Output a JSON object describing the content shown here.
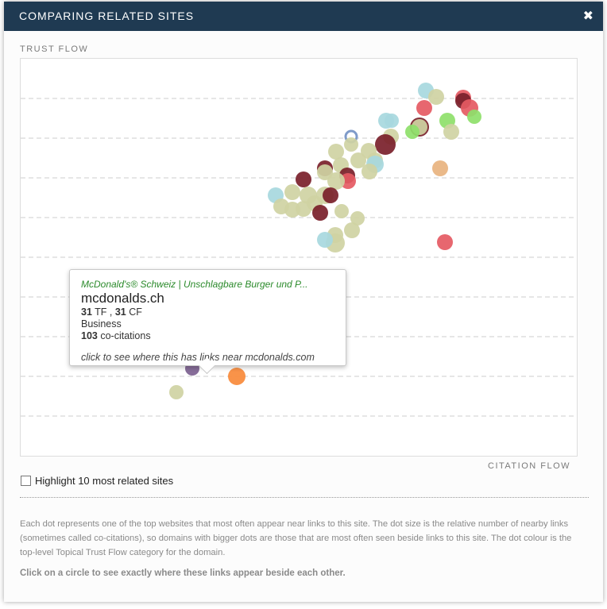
{
  "modal": {
    "title": "COMPARING RELATED SITES",
    "close_icon": "close-icon"
  },
  "chart_labels": {
    "y_axis": "TRUST FLOW",
    "x_axis": "CITATION FLOW"
  },
  "tooltip": {
    "site_title": "McDonald's® Schweiz | Unschlagbare Burger und P...",
    "domain": "mcdonalds.ch",
    "tf_value": "31",
    "tf_label": "TF ,",
    "cf_value": "31",
    "cf_label": "CF",
    "category": "Business",
    "cocitations_value": "103",
    "cocitations_label": "co-citations",
    "hint": "click to see where this has links near mcdonalds.com"
  },
  "highlight": {
    "label": "Highlight 10 most related sites",
    "checked": false
  },
  "description": "Each dot represents one of the top websites that most often appear near links to this site. The dot size is the relative number of nearby links (sometimes called co-citations), so domains with bigger dots are those that are most often seen beside links to this site. The dot colour is the top-level Topical Trust Flow category for the domain.",
  "cta": "Click on a circle to see exactly where these links appear beside each other.",
  "colors": {
    "header": "#1f3a52",
    "business": "#cfd2a3",
    "teal": "#a7d8de",
    "red": "#e55a63",
    "maroon": "#7a1f2a",
    "green": "#8ee06a",
    "orange": "#f98a3a",
    "tan": "#e8b37f",
    "pink": "#f5a3cc",
    "purple": "#7d6190",
    "blue": "#7f9bc9"
  },
  "chart_data": {
    "type": "scatter",
    "xlabel": "CITATION FLOW",
    "ylabel": "TRUST FLOW",
    "xlim": [
      0,
      70
    ],
    "ylim": [
      0,
      50
    ],
    "grid": "horizontal-dashed",
    "points": [
      {
        "x": 51,
        "y": 46,
        "r": 10,
        "c": "teal"
      },
      {
        "x": 52.3,
        "y": 45.2,
        "r": 10,
        "c": "business"
      },
      {
        "x": 55.7,
        "y": 45.1,
        "r": 10,
        "c": "red"
      },
      {
        "x": 55.7,
        "y": 44.7,
        "r": 10,
        "c": "maroon"
      },
      {
        "x": 56.5,
        "y": 43.8,
        "r": 11,
        "c": "red"
      },
      {
        "x": 57.1,
        "y": 42.7,
        "r": 9,
        "c": "green"
      },
      {
        "x": 50.8,
        "y": 43.8,
        "r": 10,
        "c": "red"
      },
      {
        "x": 46,
        "y": 42.2,
        "r": 10,
        "c": "teal"
      },
      {
        "x": 46.7,
        "y": 42.2,
        "r": 9,
        "c": "teal"
      },
      {
        "x": 50.2,
        "y": 41.4,
        "r": 12,
        "c": "maroon"
      },
      {
        "x": 50.2,
        "y": 41.4,
        "r": 10,
        "c": "business"
      },
      {
        "x": 49.3,
        "y": 40.8,
        "r": 9,
        "c": "green"
      },
      {
        "x": 53.7,
        "y": 42.2,
        "r": 10,
        "c": "green"
      },
      {
        "x": 54.2,
        "y": 40.8,
        "r": 10,
        "c": "business"
      },
      {
        "x": 46.6,
        "y": 40.2,
        "r": 10,
        "c": "business"
      },
      {
        "x": 41.6,
        "y": 40.2,
        "r": 7,
        "c": "blue",
        "hollow": true
      },
      {
        "x": 41.6,
        "y": 39.2,
        "r": 9,
        "c": "business"
      },
      {
        "x": 45.9,
        "y": 39.2,
        "r": 13,
        "c": "maroon"
      },
      {
        "x": 39.7,
        "y": 38.3,
        "r": 10,
        "c": "business"
      },
      {
        "x": 43.8,
        "y": 38.4,
        "r": 10,
        "c": "business"
      },
      {
        "x": 42.5,
        "y": 37.2,
        "r": 10,
        "c": "business"
      },
      {
        "x": 44.6,
        "y": 37.2,
        "r": 10,
        "c": "business"
      },
      {
        "x": 40.3,
        "y": 36.6,
        "r": 10,
        "c": "business"
      },
      {
        "x": 44.6,
        "y": 36.7,
        "r": 11,
        "c": "teal"
      },
      {
        "x": 38.3,
        "y": 36.2,
        "r": 10,
        "c": "maroon"
      },
      {
        "x": 38.3,
        "y": 35.7,
        "r": 10,
        "c": "business"
      },
      {
        "x": 43.9,
        "y": 35.8,
        "r": 10,
        "c": "business"
      },
      {
        "x": 41.1,
        "y": 35.3,
        "r": 10,
        "c": "maroon"
      },
      {
        "x": 41.2,
        "y": 34.6,
        "r": 10,
        "c": "red"
      },
      {
        "x": 39.7,
        "y": 34.6,
        "r": 11,
        "c": "business"
      },
      {
        "x": 35.6,
        "y": 34.8,
        "r": 10,
        "c": "maroon"
      },
      {
        "x": 32.1,
        "y": 32.8,
        "r": 10,
        "c": "teal"
      },
      {
        "x": 34.2,
        "y": 33.2,
        "r": 10,
        "c": "business"
      },
      {
        "x": 36.2,
        "y": 32.8,
        "r": 11,
        "c": "business"
      },
      {
        "x": 38.3,
        "y": 32.8,
        "r": 11,
        "c": "business"
      },
      {
        "x": 39,
        "y": 32.8,
        "r": 10,
        "c": "maroon"
      },
      {
        "x": 37,
        "y": 31.8,
        "r": 10,
        "c": "business"
      },
      {
        "x": 32.8,
        "y": 31.4,
        "r": 10,
        "c": "business"
      },
      {
        "x": 35.6,
        "y": 31.1,
        "r": 10,
        "c": "business"
      },
      {
        "x": 34.2,
        "y": 31,
        "r": 10,
        "c": "business"
      },
      {
        "x": 37.7,
        "y": 30.6,
        "r": 10,
        "c": "maroon"
      },
      {
        "x": 40.4,
        "y": 30.8,
        "r": 9,
        "c": "business"
      },
      {
        "x": 42.4,
        "y": 29.9,
        "r": 9,
        "c": "business"
      },
      {
        "x": 41.7,
        "y": 28.4,
        "r": 10,
        "c": "business"
      },
      {
        "x": 39.6,
        "y": 27.8,
        "r": 10,
        "c": "business"
      },
      {
        "x": 39.6,
        "y": 26.8,
        "r": 12,
        "c": "business"
      },
      {
        "x": 38.3,
        "y": 27.2,
        "r": 10,
        "c": "teal"
      },
      {
        "x": 52.8,
        "y": 36.2,
        "r": 10,
        "c": "tan"
      },
      {
        "x": 53.4,
        "y": 26.9,
        "r": 10,
        "c": "red"
      },
      {
        "x": 39.9,
        "y": 21.4,
        "r": 9,
        "c": "orange"
      },
      {
        "x": 24.2,
        "y": 17.0,
        "r": 9,
        "c": "business"
      },
      {
        "x": 31.3,
        "y": 19.0,
        "r": 9,
        "c": "teal"
      },
      {
        "x": 21.6,
        "y": 15.4,
        "r": 13,
        "c": "business"
      },
      {
        "x": 28.6,
        "y": 13.5,
        "r": 11,
        "c": "pink"
      },
      {
        "x": 31.3,
        "y": 14.0,
        "r": 9,
        "c": "teal"
      },
      {
        "x": 21.6,
        "y": 11.0,
        "r": 9,
        "c": "purple"
      },
      {
        "x": 27.2,
        "y": 10.0,
        "r": 11,
        "c": "orange"
      },
      {
        "x": 19.6,
        "y": 8.0,
        "r": 9,
        "c": "business"
      }
    ]
  }
}
